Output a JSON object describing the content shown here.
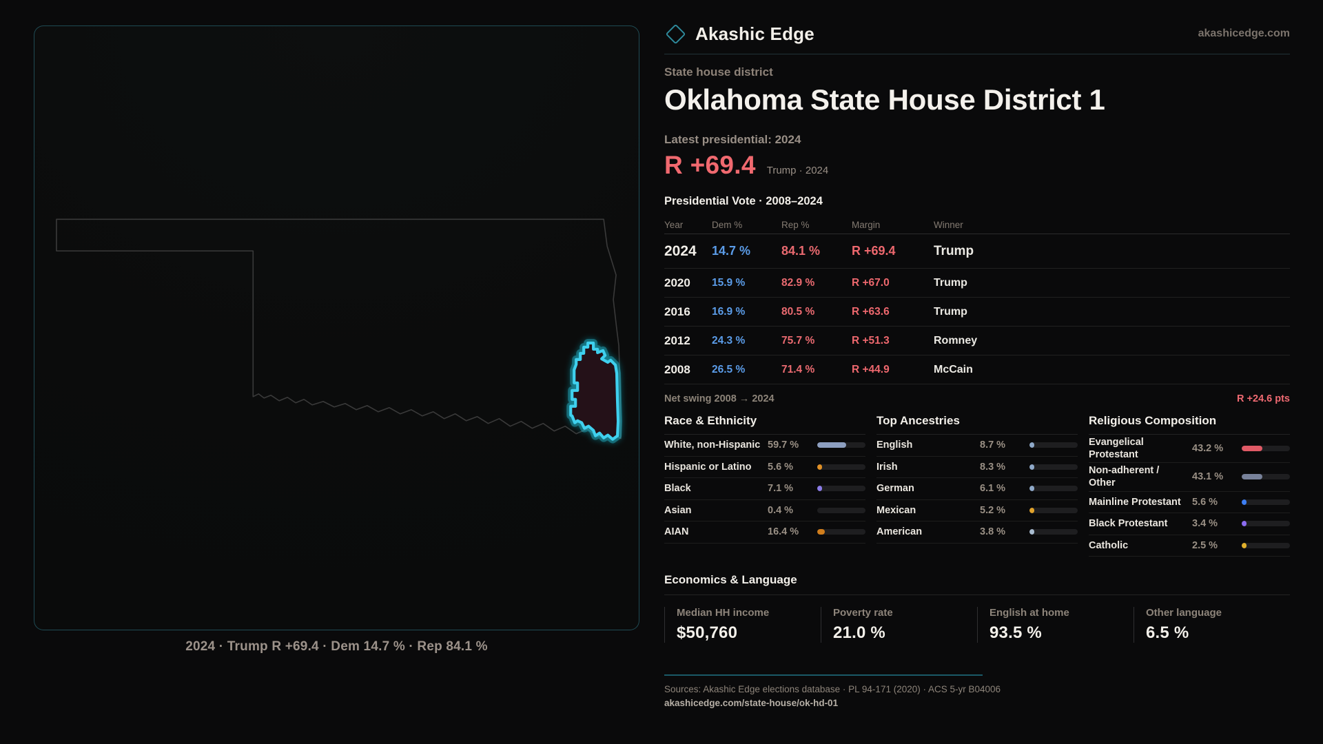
{
  "brand": {
    "name": "Akashic Edge",
    "domain": "akashicedge.com"
  },
  "header": {
    "eyebrow": "State house district",
    "title": "Oklahoma State House District 1",
    "latest_label": "Latest presidential: 2024",
    "latest_margin": "R +69.4",
    "latest_sub": "Trump · 2024"
  },
  "vote_table": {
    "title": "Presidential Vote · 2008–2024",
    "columns": {
      "year": "Year",
      "dem": "Dem %",
      "rep": "Rep %",
      "margin": "Margin",
      "winner": "Winner"
    },
    "rows": [
      {
        "year": "2024",
        "dem": "14.7 %",
        "rep": "84.1 %",
        "margin": "R +69.4",
        "winner": "Trump"
      },
      {
        "year": "2020",
        "dem": "15.9 %",
        "rep": "82.9 %",
        "margin": "R +67.0",
        "winner": "Trump"
      },
      {
        "year": "2016",
        "dem": "16.9 %",
        "rep": "80.5 %",
        "margin": "R +63.6",
        "winner": "Trump"
      },
      {
        "year": "2012",
        "dem": "24.3 %",
        "rep": "75.7 %",
        "margin": "R +51.3",
        "winner": "Romney"
      },
      {
        "year": "2008",
        "dem": "26.5 %",
        "rep": "71.4 %",
        "margin": "R +44.9",
        "winner": "McCain"
      }
    ]
  },
  "net_swing": {
    "label": "Net swing 2008 → 2024",
    "value": "R +24.6 pts"
  },
  "chart_data": [
    {
      "type": "bar",
      "title": "Race & Ethnicity",
      "categories": [
        "White, non-Hispanic",
        "Hispanic or Latino",
        "Black",
        "Asian",
        "AIAN"
      ],
      "values": [
        59.7,
        5.6,
        7.1,
        0.4,
        16.4
      ],
      "ylim": [
        0,
        100
      ]
    },
    {
      "type": "bar",
      "title": "Top Ancestries",
      "categories": [
        "English",
        "Irish",
        "German",
        "Mexican",
        "American"
      ],
      "values": [
        8.7,
        8.3,
        6.1,
        5.2,
        3.8
      ],
      "ylim": [
        0,
        100
      ]
    },
    {
      "type": "bar",
      "title": "Religious Composition",
      "categories": [
        "Evangelical Protestant",
        "Non-adherent / Other",
        "Mainline Protestant",
        "Black Protestant",
        "Catholic"
      ],
      "values": [
        43.2,
        43.1,
        5.6,
        3.4,
        2.5
      ],
      "ylim": [
        0,
        100
      ]
    }
  ],
  "race": {
    "title": "Race & Ethnicity",
    "rows": [
      {
        "label": "White, non-Hispanic",
        "value": "59.7 %",
        "pct": 59.7,
        "color": "#8d9fc0"
      },
      {
        "label": "Hispanic or Latino",
        "value": "5.6 %",
        "pct": 5.6,
        "color": "#e09026"
      },
      {
        "label": "Black",
        "value": "7.1 %",
        "pct": 7.1,
        "color": "#8b7ce8"
      },
      {
        "label": "Asian",
        "value": "0.4 %",
        "pct": 0.4,
        "color": "#9fb4c9"
      },
      {
        "label": "AIAN",
        "value": "16.4 %",
        "pct": 16.4,
        "color": "#d07d1c"
      }
    ]
  },
  "ancestries": {
    "title": "Top Ancestries",
    "rows": [
      {
        "label": "English",
        "value": "8.7 %",
        "pct": 8.7,
        "color": "#8fa9c9"
      },
      {
        "label": "Irish",
        "value": "8.3 %",
        "pct": 8.3,
        "color": "#8fa9c9"
      },
      {
        "label": "German",
        "value": "6.1 %",
        "pct": 6.1,
        "color": "#8fa9c9"
      },
      {
        "label": "Mexican",
        "value": "5.2 %",
        "pct": 5.2,
        "color": "#e0a22c"
      },
      {
        "label": "American",
        "value": "3.8 %",
        "pct": 3.8,
        "color": "#a9bcd0"
      }
    ]
  },
  "religion": {
    "title": "Religious Composition",
    "rows": [
      {
        "label": "Evangelical Protestant",
        "value": "43.2 %",
        "pct": 43.2,
        "color": "#e05a66"
      },
      {
        "label": "Non-adherent / Other",
        "value": "43.1 %",
        "pct": 43.1,
        "color": "#78829a"
      },
      {
        "label": "Mainline Protestant",
        "value": "5.6 %",
        "pct": 5.6,
        "color": "#3d7ef2"
      },
      {
        "label": "Black Protestant",
        "value": "3.4 %",
        "pct": 3.4,
        "color": "#8b6bf0"
      },
      {
        "label": "Catholic",
        "value": "2.5 %",
        "pct": 2.5,
        "color": "#e0b02c"
      }
    ]
  },
  "economics": {
    "title": "Economics & Language",
    "stats": [
      {
        "label": "Median HH income",
        "value": "$50,760"
      },
      {
        "label": "Poverty rate",
        "value": "21.0 %"
      },
      {
        "label": "English at home",
        "value": "93.5 %"
      },
      {
        "label": "Other language",
        "value": "6.5 %"
      }
    ]
  },
  "map": {
    "caption": "2024 · Trump R +69.4 · Dem 14.7 % · Rep 84.1 %"
  },
  "footer": {
    "sources": "Sources: Akashic Edge elections database · PL 94-171 (2020) · ACS 5-yr B04006",
    "permalink": "akashicedge.com/state-house/ok-hd-01"
  },
  "colors": {
    "accent_teal": "#2e8a9c",
    "district_glow": "#3fd0ee",
    "rep_red": "#ef6a72",
    "dem_blue": "#5b9ce8",
    "muted": "#8d847a",
    "bar_track": "#1e1e20"
  }
}
